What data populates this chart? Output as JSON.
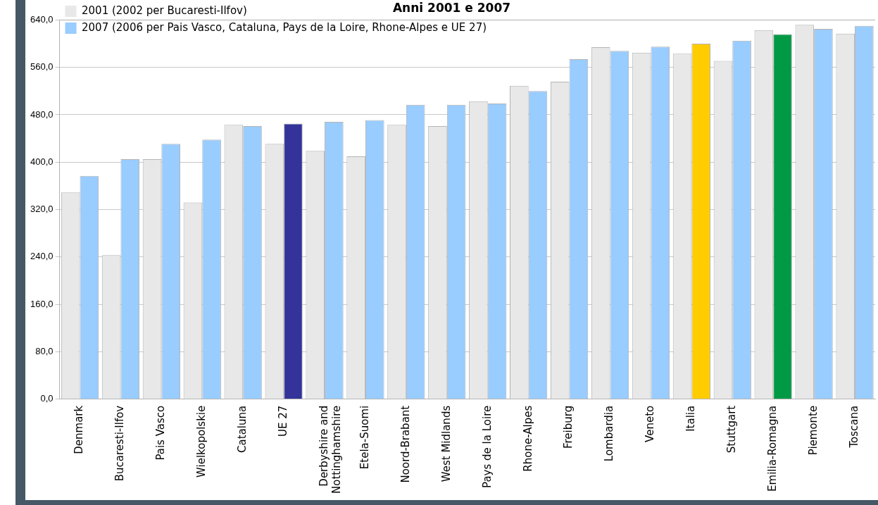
{
  "chart_data": {
    "type": "bar",
    "title": "Anni 2001 e 2007",
    "categories": [
      "Denmark",
      "Bucaresti-Ilfov",
      "Pais Vasco",
      "Wielkopolskie",
      "Cataluna",
      "UE 27",
      "Derbyshire and Nottinghamshire",
      "Etela-Suomi",
      "Noord-Brabant",
      "West Midlands",
      "Pays de la Loire",
      "Rhone-Alpes",
      "Freiburg",
      "Lombardia",
      "Veneto",
      "Italia",
      "Stuttgart",
      "Emilia-Romagna",
      "Piemonte",
      "Toscana"
    ],
    "series": [
      {
        "name": "2001 (2002 per Bucaresti-Ilfov)",
        "color": "#e8e8e8",
        "values": [
          349,
          243,
          405,
          332,
          463,
          431,
          419,
          410,
          463,
          461,
          503,
          529,
          536,
          594,
          585,
          583,
          571,
          623,
          632,
          617
        ]
      },
      {
        "name": "2007 (2006 per Pais Vasco, Cataluna, Pays de la Loire, Rhone-Alpes e UE 27)",
        "color": "#99ccff",
        "colors": [
          "#99ccff",
          "#99ccff",
          "#99ccff",
          "#99ccff",
          "#99ccff",
          "#333399",
          "#99ccff",
          "#99ccff",
          "#99ccff",
          "#99ccff",
          "#99ccff",
          "#99ccff",
          "#99ccff",
          "#99ccff",
          "#99ccff",
          "#ffcc00",
          "#99ccff",
          "#009944",
          "#99ccff",
          "#99ccff"
        ],
        "values": [
          377,
          405,
          431,
          438,
          461,
          465,
          468,
          471,
          497,
          497,
          499,
          520,
          574,
          588,
          595,
          600,
          605,
          616,
          625,
          630
        ]
      }
    ],
    "ylim": [
      0,
      640
    ],
    "yticks": [
      {
        "value": 0,
        "label": "0,0"
      },
      {
        "value": 80,
        "label": "80,0"
      },
      {
        "value": 160,
        "label": "160,0"
      },
      {
        "value": 240,
        "label": "240,0"
      },
      {
        "value": 320,
        "label": "320,0"
      },
      {
        "value": 400,
        "label": "400,0"
      },
      {
        "value": 480,
        "label": "480,0"
      },
      {
        "value": 560,
        "label": "560,0"
      },
      {
        "value": 640,
        "label": "640,0"
      }
    ],
    "grid": "y",
    "legend": "top left"
  }
}
